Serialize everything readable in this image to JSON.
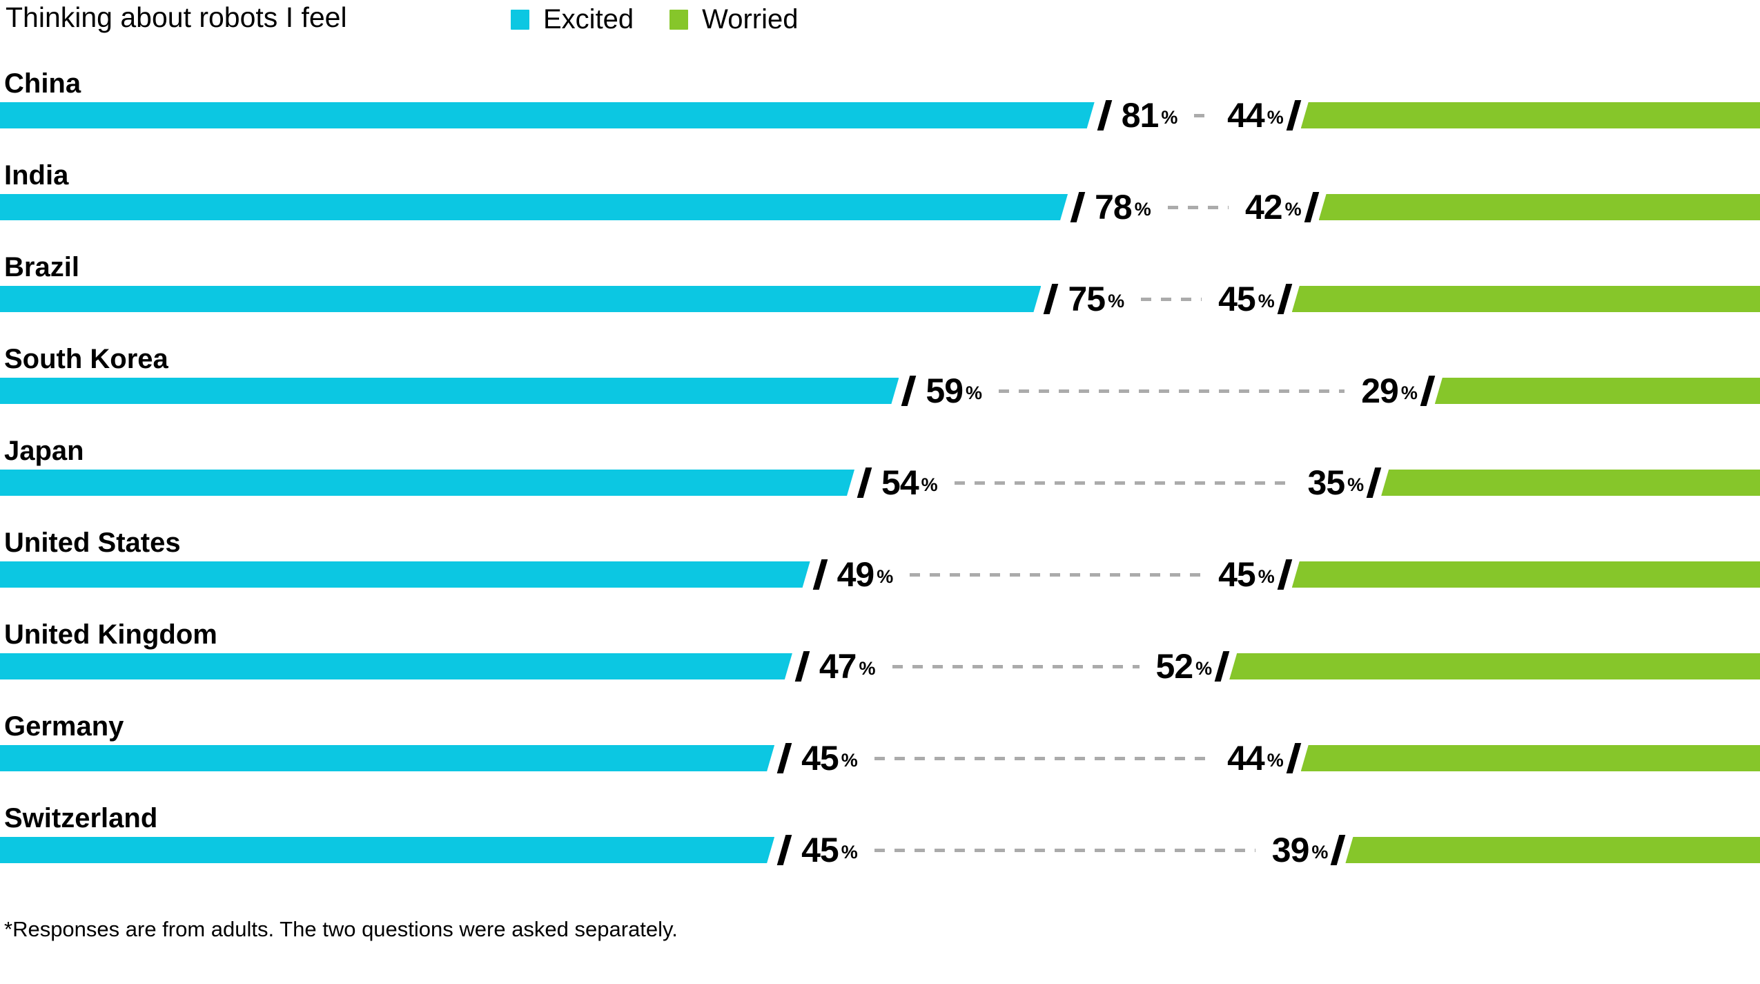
{
  "chart_data": {
    "type": "bar",
    "variant": "diverging-horizontal-slash-style",
    "title": "Thinking about robots I feel",
    "categories": [
      "China",
      "India",
      "Brazil",
      "South Korea",
      "Japan",
      "United States",
      "United Kingdom",
      "Germany",
      "Switzerland"
    ],
    "series": [
      {
        "name": "Excited",
        "color": "#0cc7e2",
        "values": [
          81,
          78,
          75,
          59,
          54,
          49,
          47,
          45,
          45
        ]
      },
      {
        "name": "Worried",
        "color": "#86c62a",
        "values": [
          44,
          42,
          45,
          29,
          35,
          45,
          52,
          44,
          39
        ]
      }
    ],
    "value_unit": "%",
    "legend_position": "top",
    "grid": false,
    "axis_labels_shown": false,
    "footnote": "*Responses are from adults. The two questions were asked separately."
  },
  "colors": {
    "excited": "#0cc7e2",
    "worried": "#86c62a",
    "leader_dash": "#ababab",
    "slash": "#000000",
    "text": "#000000",
    "background": "#ffffff"
  }
}
